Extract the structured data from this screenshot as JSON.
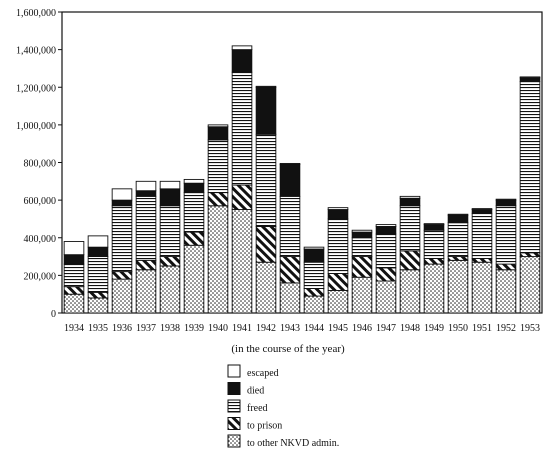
{
  "chart_data": {
    "type": "bar",
    "stacked": true,
    "title": "",
    "xlabel": "(in the course of the year)",
    "ylabel": "",
    "ylim": [
      0,
      1600000
    ],
    "yticks": [
      0,
      200000,
      400000,
      600000,
      800000,
      1000000,
      1200000,
      1400000,
      1600000
    ],
    "ytick_labels": [
      "0",
      "200,000",
      "400,000",
      "600,000",
      "800,000",
      "1,000,000",
      "1,200,000",
      "1,400,000",
      "1,600,000"
    ],
    "categories": [
      "1934",
      "1935",
      "1936",
      "1937",
      "1938",
      "1939",
      "1940",
      "1941",
      "1942",
      "1943",
      "1944",
      "1945",
      "1946",
      "1947",
      "1948",
      "1949",
      "1950",
      "1951",
      "1952",
      "1953"
    ],
    "legend_position": "bottom-center",
    "series": [
      {
        "name": "to other NKVD admin.",
        "pattern": "dots",
        "values": [
          100000,
          80000,
          180000,
          230000,
          250000,
          360000,
          570000,
          550000,
          270000,
          160000,
          90000,
          120000,
          190000,
          170000,
          230000,
          260000,
          280000,
          270000,
          230000,
          300000
        ]
      },
      {
        "name": "to prison",
        "pattern": "diagonal",
        "values": [
          40000,
          30000,
          40000,
          50000,
          50000,
          70000,
          70000,
          130000,
          190000,
          140000,
          40000,
          90000,
          110000,
          70000,
          100000,
          30000,
          20000,
          20000,
          30000,
          20000
        ]
      },
      {
        "name": "freed",
        "pattern": "horizontal",
        "values": [
          120000,
          190000,
          350000,
          340000,
          270000,
          210000,
          280000,
          600000,
          490000,
          320000,
          140000,
          290000,
          100000,
          180000,
          240000,
          150000,
          180000,
          240000,
          310000,
          910000
        ]
      },
      {
        "name": "died",
        "pattern": "solid",
        "values": [
          50000,
          50000,
          30000,
          30000,
          90000,
          50000,
          70000,
          120000,
          250000,
          170000,
          70000,
          50000,
          30000,
          40000,
          40000,
          30000,
          40000,
          20000,
          30000,
          20000
        ]
      },
      {
        "name": "escaped",
        "pattern": "white",
        "values": [
          70000,
          60000,
          60000,
          50000,
          40000,
          20000,
          10000,
          20000,
          5000,
          5000,
          10000,
          10000,
          10000,
          10000,
          10000,
          5000,
          5000,
          5000,
          5000,
          5000
        ]
      }
    ],
    "legend_order": [
      "escaped",
      "died",
      "freed",
      "to prison",
      "to other NKVD admin."
    ]
  }
}
